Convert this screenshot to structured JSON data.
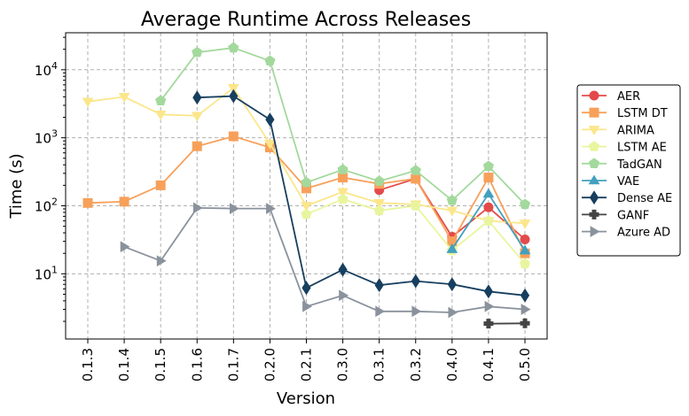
{
  "chart_data": {
    "type": "line",
    "title": "Average Runtime Across Releases",
    "xlabel": "Version",
    "ylabel": "Time (s)",
    "yscale": "log",
    "ylim": [
      1.1,
      35000
    ],
    "y_ticks": [
      {
        "value": 10,
        "base": "10",
        "exp": "1"
      },
      {
        "value": 100,
        "base": "10",
        "exp": "2"
      },
      {
        "value": 1000,
        "base": "10",
        "exp": "3"
      },
      {
        "value": 10000,
        "base": "10",
        "exp": "4"
      }
    ],
    "grid": true,
    "legend": "right",
    "x": [
      "0.1.3",
      "0.1.4",
      "0.1.5",
      "0.1.6",
      "0.1.7",
      "0.2.0",
      "0.2.1",
      "0.3.0",
      "0.3.1",
      "0.3.2",
      "0.4.0",
      "0.4.1",
      "0.5.0"
    ],
    "series": [
      {
        "name": "AER",
        "color": "#e34a4a",
        "marker": "circle",
        "values": [
          null,
          null,
          null,
          null,
          null,
          null,
          null,
          null,
          170,
          250,
          35,
          95,
          32
        ]
      },
      {
        "name": "LSTM DT",
        "color": "#f7a05a",
        "marker": "square",
        "values": [
          110,
          115,
          200,
          750,
          1050,
          720,
          180,
          260,
          210,
          250,
          30,
          260,
          20
        ]
      },
      {
        "name": "ARIMA",
        "color": "#fbe68a",
        "marker": "triangle-down",
        "values": [
          3400,
          4000,
          2200,
          2100,
          5400,
          820,
          100,
          160,
          110,
          105,
          85,
          60,
          55
        ]
      },
      {
        "name": "LSTM AE",
        "color": "#e9f59e",
        "marker": "pentagon",
        "values": [
          null,
          null,
          null,
          null,
          null,
          null,
          75,
          125,
          85,
          100,
          22,
          60,
          14
        ]
      },
      {
        "name": "TadGAN",
        "color": "#a3d99d",
        "marker": "pentagon",
        "values": [
          null,
          null,
          3500,
          18000,
          21000,
          13500,
          220,
          340,
          230,
          330,
          120,
          380,
          105
        ]
      },
      {
        "name": "VAE",
        "color": "#43a0be",
        "marker": "triangle-up",
        "values": [
          null,
          null,
          null,
          null,
          null,
          null,
          null,
          null,
          null,
          null,
          23,
          150,
          22
        ]
      },
      {
        "name": "Dense AE",
        "color": "#173f5f",
        "marker": "diamond",
        "values": [
          null,
          null,
          null,
          3900,
          4100,
          1850,
          6.2,
          11.5,
          6.8,
          7.8,
          7.0,
          5.5,
          4.8
        ]
      },
      {
        "name": "GANF",
        "color": "#444444",
        "marker": "plus",
        "values": [
          null,
          null,
          null,
          null,
          null,
          null,
          null,
          null,
          null,
          null,
          null,
          1.85,
          1.87
        ]
      },
      {
        "name": "Azure AD",
        "color": "#8a929d",
        "marker": "triangle-right",
        "values": [
          null,
          25,
          15.5,
          93,
          91,
          91,
          3.3,
          4.8,
          2.8,
          2.8,
          2.7,
          3.3,
          3.0
        ]
      }
    ]
  }
}
